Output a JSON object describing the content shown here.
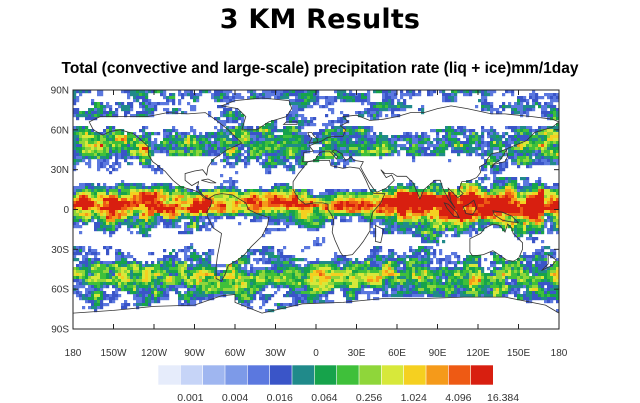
{
  "heading": "3 KM Results",
  "chart_data": {
    "type": "heatmap",
    "title": "Total (convective and large-scale) precipitation rate (liq + ice)mm/1day",
    "xlabel": "",
    "ylabel": "",
    "x_ticks": [
      "180",
      "150W",
      "120W",
      "90W",
      "60W",
      "30W",
      "0",
      "30E",
      "60E",
      "90E",
      "120E",
      "150E",
      "180"
    ],
    "x_values": [
      -180,
      -150,
      -120,
      -90,
      -60,
      -30,
      0,
      30,
      60,
      90,
      120,
      150,
      180
    ],
    "y_ticks": [
      "90N",
      "60N",
      "30N",
      "0",
      "30S",
      "60S",
      "90S"
    ],
    "y_values": [
      90,
      60,
      30,
      0,
      -30,
      -60,
      -90
    ],
    "xlim": [
      -180,
      180
    ],
    "ylim": [
      -90,
      90
    ],
    "colorbar": {
      "scale": "log4",
      "labels": [
        "0.001",
        "0.004",
        "0.016",
        "0.064",
        "0.256",
        "1.024",
        "4.096",
        "16.384"
      ],
      "colors": [
        "#e6ecfb",
        "#c6d4f7",
        "#9fb6f0",
        "#7d9ae8",
        "#5b78df",
        "#3a55c8",
        "#208a8a",
        "#16a34b",
        "#3fc03a",
        "#8fd63a",
        "#d7e83a",
        "#f5d020",
        "#f59a1a",
        "#ee5a14",
        "#d81f10"
      ]
    },
    "grid": false,
    "legend": "colorbar-bottom"
  }
}
